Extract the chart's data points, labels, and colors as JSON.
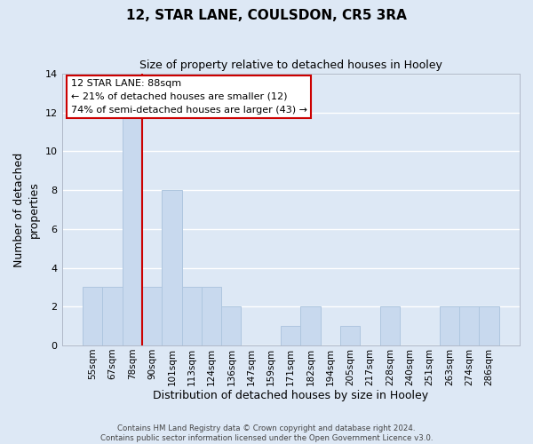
{
  "title": "12, STAR LANE, COULSDON, CR5 3RA",
  "subtitle": "Size of property relative to detached houses in Hooley",
  "xlabel": "Distribution of detached houses by size in Hooley",
  "ylabel": "Number of detached\nproperties",
  "bar_labels": [
    "55sqm",
    "67sqm",
    "78sqm",
    "90sqm",
    "101sqm",
    "113sqm",
    "124sqm",
    "136sqm",
    "147sqm",
    "159sqm",
    "171sqm",
    "182sqm",
    "194sqm",
    "205sqm",
    "217sqm",
    "228sqm",
    "240sqm",
    "251sqm",
    "263sqm",
    "274sqm",
    "286sqm"
  ],
  "bar_values": [
    3,
    3,
    12,
    3,
    8,
    3,
    3,
    2,
    0,
    0,
    1,
    2,
    0,
    1,
    0,
    2,
    0,
    0,
    2,
    2,
    2
  ],
  "bar_color": "#c8d9ee",
  "bar_edge_color": "#aec6df",
  "vline_index": 2,
  "vline_color": "#cc0000",
  "annotation_text": "12 STAR LANE: 88sqm\n← 21% of detached houses are smaller (12)\n74% of semi-detached houses are larger (43) →",
  "annotation_box_facecolor": "#ffffff",
  "annotation_box_edgecolor": "#cc0000",
  "ylim": [
    0,
    14
  ],
  "yticks": [
    0,
    2,
    4,
    6,
    8,
    10,
    12,
    14
  ],
  "grid_color": "#ffffff",
  "background_color": "#dde8f5",
  "footer_line1": "Contains HM Land Registry data © Crown copyright and database right 2024.",
  "footer_line2": "Contains public sector information licensed under the Open Government Licence v3.0."
}
